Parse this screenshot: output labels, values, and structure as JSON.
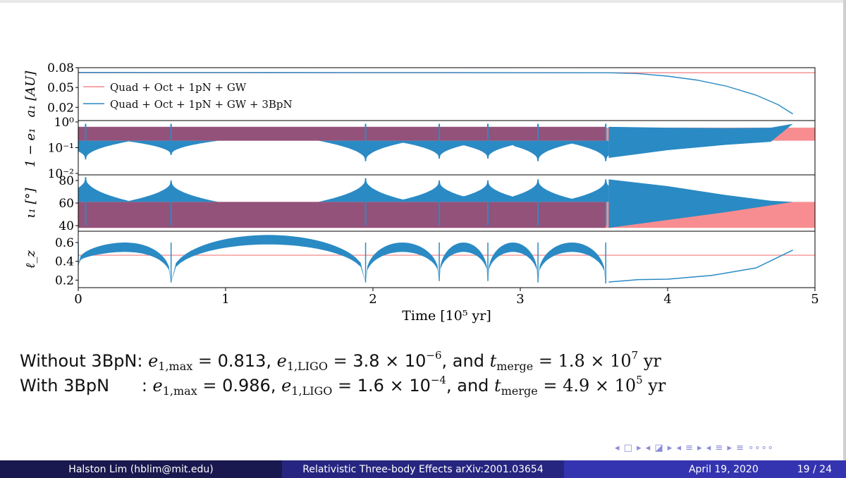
{
  "chart_data": {
    "type": "line",
    "xlabel": "Time [10⁵ yr]",
    "xlim": [
      0,
      5
    ],
    "xticks": [
      "0",
      "1",
      "2",
      "3",
      "4",
      "5"
    ],
    "xtick_values": [
      0,
      1,
      2,
      3,
      4,
      5
    ],
    "legend": {
      "placement": "upper-left of top panel",
      "entries": [
        {
          "label": "Quad + Oct + 1pN + GW",
          "color": "#f4898b"
        },
        {
          "label": "Quad + Oct + 1pN + GW + 3BpN",
          "color": "#2a8ac4"
        }
      ]
    },
    "colors": {
      "red_series": "#f4898b",
      "blue_series": "#2a8ac4",
      "overlap": "#8a4d78",
      "red_band": "#f7878a"
    },
    "panels": [
      {
        "id": "a1",
        "ylabel": "a₁ [AU]",
        "ylim": [
          0.0,
          0.08
        ],
        "yticks": [
          {
            "v": 0.08,
            "label": "0.08"
          },
          {
            "v": 0.05,
            "label": "0.05"
          },
          {
            "v": 0.02,
            "label": "0.02"
          }
        ],
        "series": [
          {
            "name": "Quad + Oct + 1pN + GW",
            "x": [
              0,
              5
            ],
            "y": [
              0.0723,
              0.0723
            ]
          },
          {
            "name": "Quad + Oct + 1pN + GW + 3BpN",
            "x": [
              0,
              1.0,
              2.0,
              3.0,
              3.6,
              3.8,
              4.0,
              4.2,
              4.4,
              4.6,
              4.75,
              4.85
            ],
            "y": [
              0.0728,
              0.0727,
              0.0726,
              0.0725,
              0.0723,
              0.071,
              0.0672,
              0.0612,
              0.052,
              0.0385,
              0.024,
              0.01
            ]
          }
        ]
      },
      {
        "id": "e1",
        "ylabel": "1 − e₁",
        "scale": "log",
        "ylim": [
          0.01,
          1.0
        ],
        "yticks": [
          {
            "v": 1.0,
            "label": "10⁰"
          },
          {
            "v": 0.1,
            "label": "10⁻¹"
          },
          {
            "v": 0.01,
            "label": "10⁻²"
          }
        ],
        "red_band": {
          "x": [
            0,
            5
          ],
          "y_range": [
            0.187,
            0.6
          ]
        },
        "blue_minima": {
          "x": [
            0.05,
            0.63,
            1.95,
            2.45,
            2.78,
            3.12,
            3.58
          ],
          "y": [
            0.035,
            0.052,
            0.03,
            0.038,
            0.038,
            0.03,
            0.03
          ]
        },
        "blue_upper": 0.65,
        "blue_baseline": 0.187,
        "blue_tail": {
          "x": [
            3.6,
            4.0,
            4.4,
            4.7,
            4.85
          ],
          "y_min": [
            0.04,
            0.08,
            0.13,
            0.17,
            0.85
          ],
          "y_max": [
            0.65,
            0.6,
            0.58,
            0.6,
            0.85
          ]
        }
      },
      {
        "id": "i1",
        "ylabel": "ι₁ [°]",
        "ylim": [
          35,
          85
        ],
        "yticks": [
          {
            "v": 80,
            "label": "80"
          },
          {
            "v": 60,
            "label": "60"
          },
          {
            "v": 40,
            "label": "40"
          }
        ],
        "red_band": {
          "x": [
            0,
            5
          ],
          "y_range": [
            38,
            61
          ]
        },
        "blue_maxima": {
          "x": [
            0.05,
            0.63,
            1.95,
            2.45,
            2.78,
            3.12,
            3.58
          ],
          "y": [
            83,
            80,
            82,
            80,
            80,
            81,
            81
          ]
        },
        "blue_baseline": 61,
        "blue_tail": {
          "x": [
            3.6,
            4.0,
            4.4,
            4.7,
            4.85
          ],
          "y_min": [
            38,
            45,
            52,
            58,
            61
          ],
          "y_max": [
            81,
            75,
            67,
            62,
            61
          ]
        }
      },
      {
        "id": "lz",
        "ylabel": "ℓ_z",
        "ylim": [
          0.12,
          0.72
        ],
        "yticks": [
          {
            "v": 0.6,
            "label": "0.6"
          },
          {
            "v": 0.4,
            "label": "0.4"
          },
          {
            "v": 0.2,
            "label": "0.2"
          }
        ],
        "red_line": 0.465,
        "blue_arches": {
          "x_min": [
            0.0,
            0.63,
            1.95,
            2.45,
            2.78,
            3.12,
            3.58
          ],
          "y_min": [
            0.36,
            0.175,
            0.175,
            0.19,
            0.19,
            0.175,
            0.165
          ],
          "arch_max": [
            0.6,
            0.68,
            0.6,
            0.6,
            0.6,
            0.6
          ]
        },
        "blue_tail": {
          "x": [
            3.6,
            3.8,
            4.0,
            4.3,
            4.6,
            4.85
          ],
          "y": [
            0.18,
            0.205,
            0.21,
            0.25,
            0.33,
            0.52
          ]
        }
      }
    ]
  },
  "summary": {
    "line1": {
      "prefix": "Without 3BpN: ",
      "emax_sym": "e",
      "emax_sub": "1,max",
      "eq1": " = ",
      "emax_val": "0.813",
      "sep1": ", ",
      "eligo_sym": "e",
      "eligo_sub": "1,LIGO",
      "eq2": " = ",
      "eligo_val": "3.8 × 10",
      "eligo_exp": "−6",
      "sep2": ", and ",
      "t_sym": "t",
      "t_sub": "merge",
      "eq3": " = ",
      "t_val": "1.8 × 10",
      "t_exp": "7",
      "t_unit": " yr"
    },
    "line2": {
      "prefix": "With 3BpN      : ",
      "emax_sym": "e",
      "emax_sub": "1,max",
      "eq1": " = ",
      "emax_val": "0.986",
      "sep1": ", ",
      "eligo_sym": "e",
      "eligo_sub": "1,LIGO",
      "eq2": " = ",
      "eligo_val": "1.6 × 10",
      "eligo_exp": "−4",
      "sep2": ", and ",
      "t_sym": "t",
      "t_sub": "merge",
      "eq3": " = ",
      "t_val": "4.9 × 10",
      "t_exp": "5",
      "t_unit": " yr"
    }
  },
  "nav": {
    "symbols": "◂ □ ▸ ◂ ◪ ▸ ◂ ≡ ▸ ◂ ≡ ▸   ≡   ∘∘∘∘"
  },
  "footer": {
    "author": "Halston Lim  (hblim@mit.edu)",
    "title": "Relativistic Three-body Effects arXiv:2001.03654",
    "date": "April 19, 2020",
    "page": "19 / 24"
  }
}
